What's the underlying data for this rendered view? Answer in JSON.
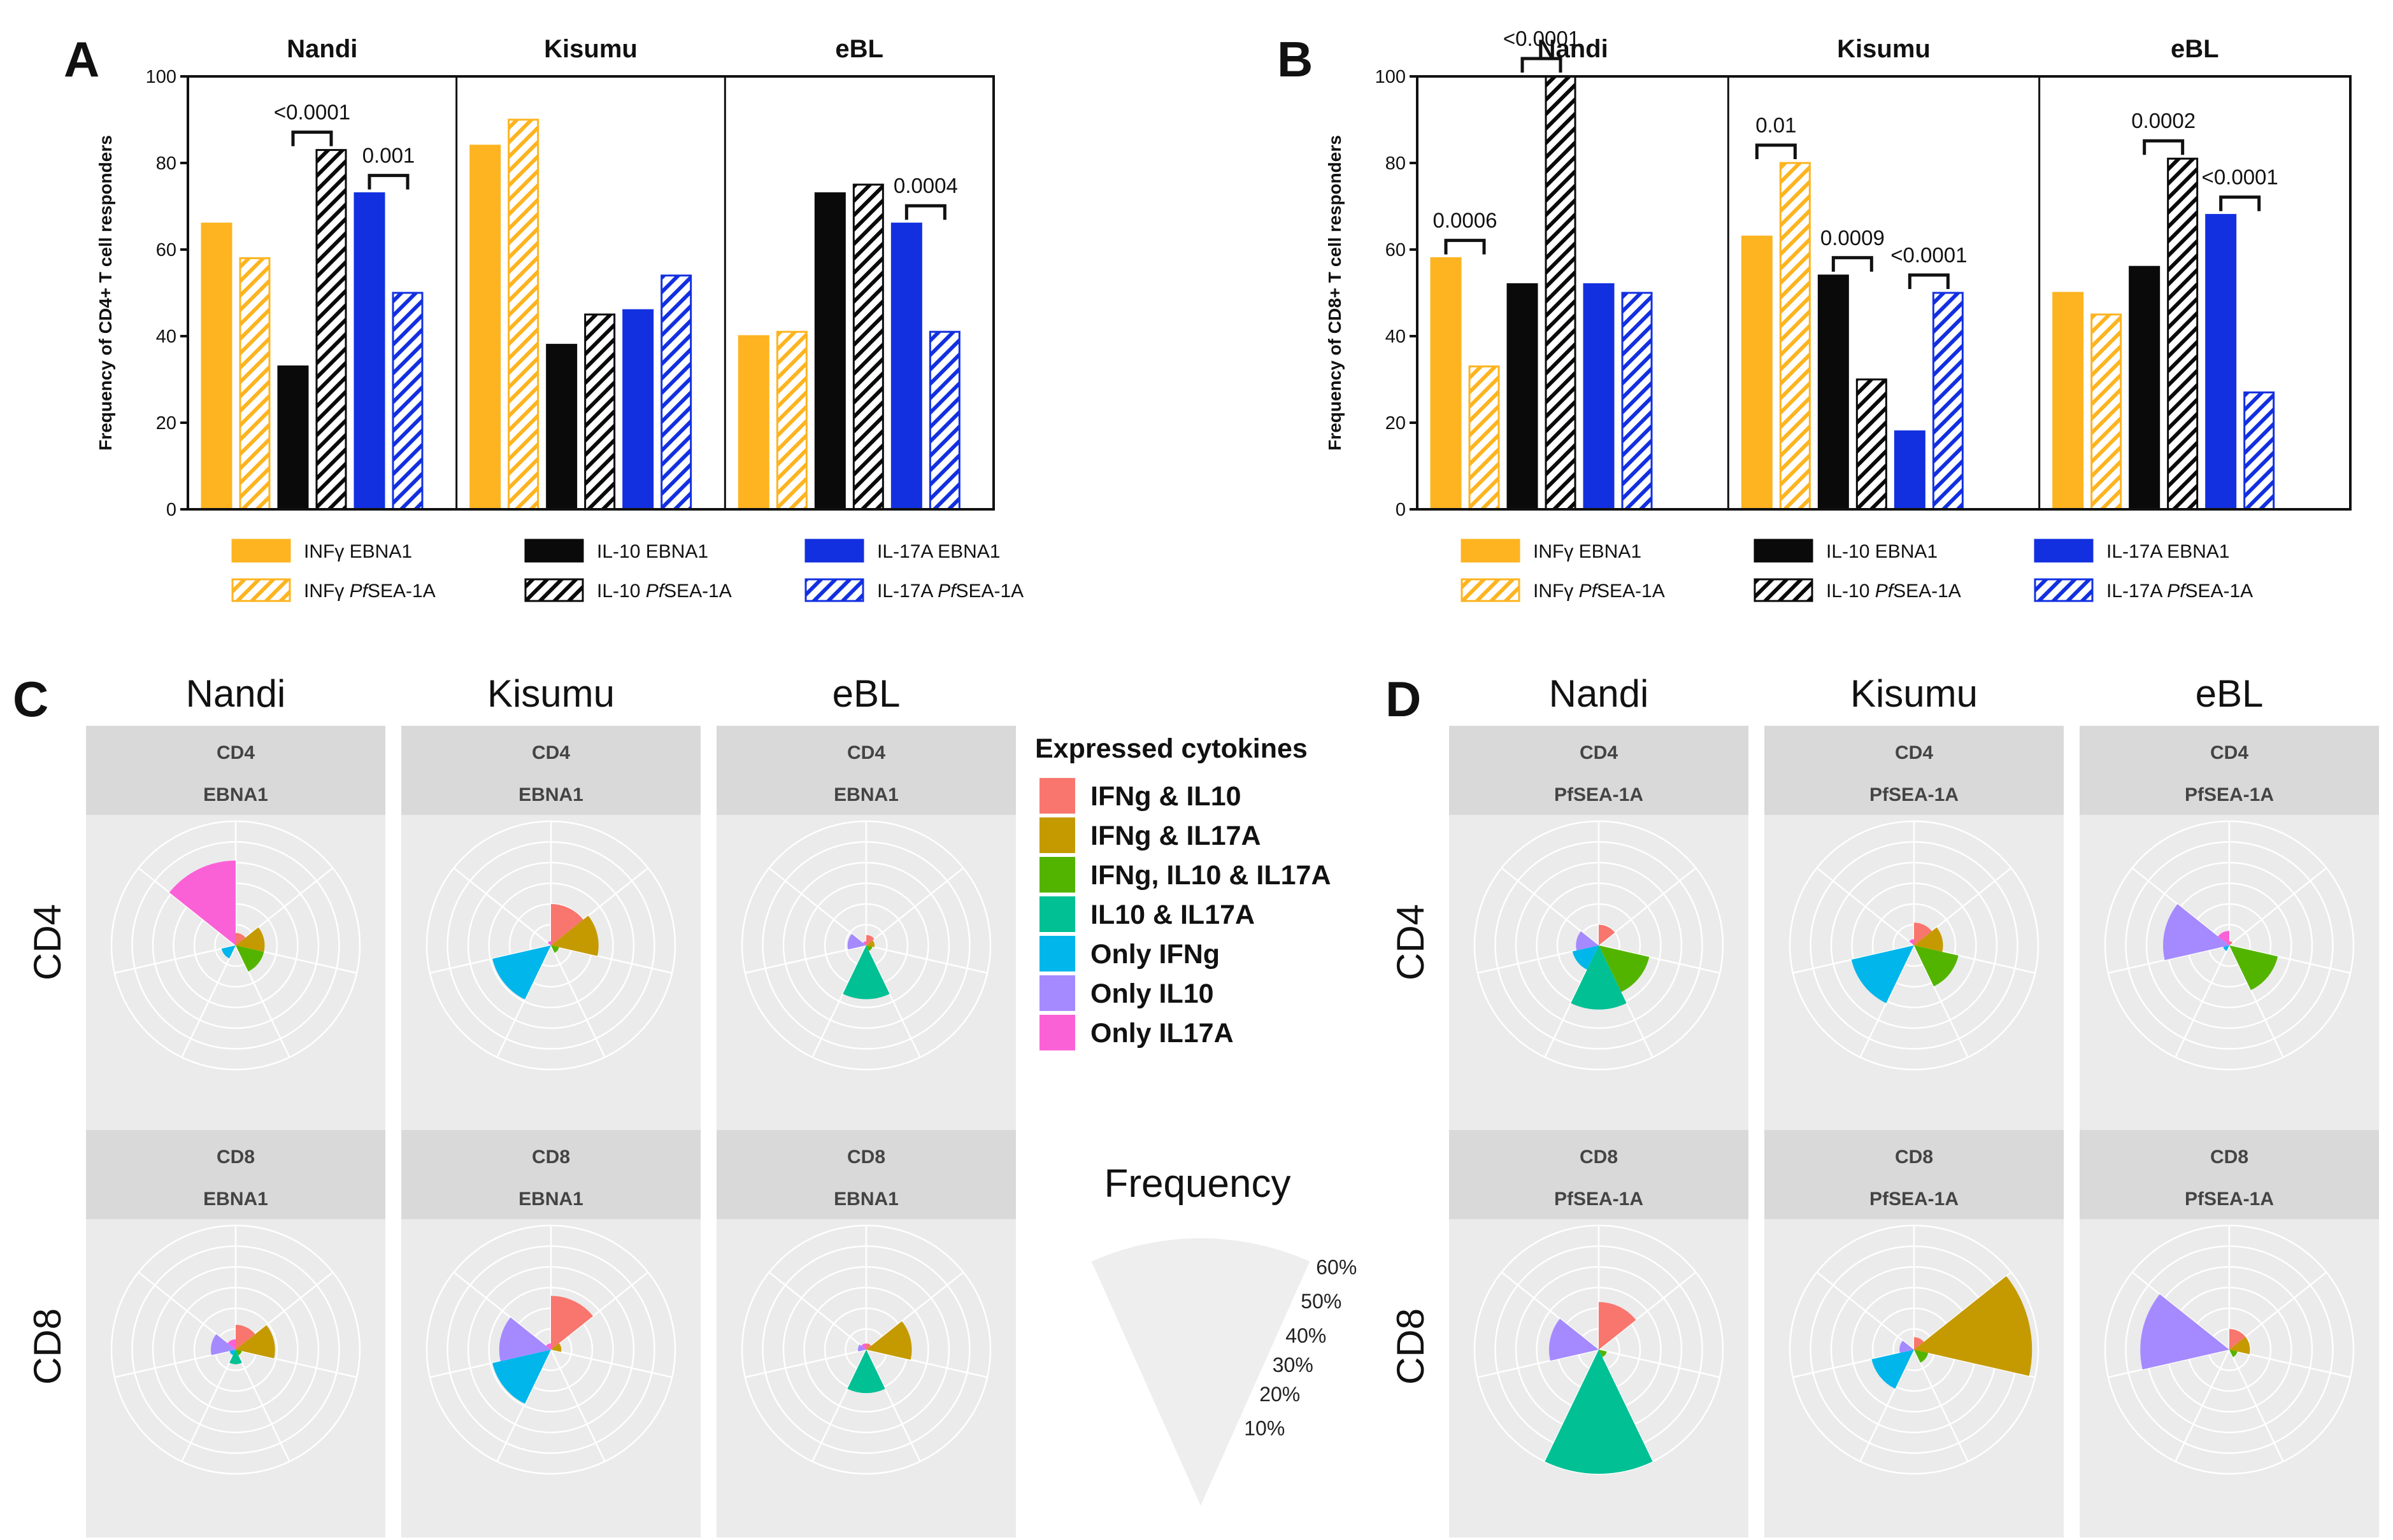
{
  "colors": {
    "ifng": "#FDB420",
    "il10": "#0A0A0A",
    "il17a": "#1230E0",
    "panel_bg": "#EBEBEB",
    "strip_bg": "#D9D9D9",
    "grid": "#FFFFFF",
    "IFNg & IL10": "#F8766D",
    "IFNg & IL17A": "#C49A00",
    "IFNg, IL10 & IL17A": "#53B400",
    "IL10 & IL17A": "#00C094",
    "Only IFNg": "#00B6EB",
    "Only IL10": "#A58AFF",
    "Only IL17A": "#FB61D7"
  },
  "panel_labels": [
    "A",
    "B",
    "C",
    "D"
  ],
  "chart_data": [
    {
      "id": "A",
      "type": "bar",
      "ylabel": "Frequency of CD4+ T cell responders",
      "ylim": [
        0,
        100
      ],
      "yticks": [
        0,
        20,
        40,
        60,
        80,
        100
      ],
      "groups": [
        "Nandi",
        "Kisumu",
        "eBL"
      ],
      "series": [
        {
          "name": "INFγ EBNA1",
          "values": [
            66,
            84,
            40
          ]
        },
        {
          "name": "INFγ PfSEA-1A",
          "values": [
            58,
            90,
            41
          ]
        },
        {
          "name": "IL-10 EBNA1",
          "values": [
            33,
            38,
            73
          ]
        },
        {
          "name": "IL-10 PfSEA-1A",
          "values": [
            83,
            45,
            75
          ]
        },
        {
          "name": "IL-17A EBNA1",
          "values": [
            73,
            46,
            66
          ]
        },
        {
          "name": "IL-17A PfSEA-1A",
          "values": [
            50,
            54,
            41
          ]
        }
      ],
      "annotations": [
        {
          "group": 0,
          "from": 2,
          "to": 3,
          "label": "<0.0001"
        },
        {
          "group": 0,
          "from": 4,
          "to": 5,
          "label": "0.001"
        },
        {
          "group": 2,
          "from": 4,
          "to": 5,
          "label": "0.0004"
        }
      ],
      "legend": [
        {
          "prefix": "INFγ EBNA1",
          "italic": "",
          "suffix": ""
        },
        {
          "prefix": "IL-10 EBNA1",
          "italic": "",
          "suffix": ""
        },
        {
          "prefix": "IL-17A EBNA1",
          "italic": "",
          "suffix": ""
        },
        {
          "prefix": "INFγ ",
          "italic": "Pf",
          "suffix": "SEA-1A"
        },
        {
          "prefix": "IL-10 ",
          "italic": "Pf",
          "suffix": "SEA-1A"
        },
        {
          "prefix": "IL-17A ",
          "italic": "Pf",
          "suffix": "SEA-1A"
        }
      ]
    },
    {
      "id": "B",
      "type": "bar",
      "ylabel": "Frequency of CD8+ T cell responders",
      "ylim": [
        0,
        100
      ],
      "yticks": [
        0,
        20,
        40,
        60,
        80,
        100
      ],
      "groups": [
        "Nandi",
        "Kisumu",
        "eBL"
      ],
      "series": [
        {
          "name": "INFγ EBNA1",
          "values": [
            58,
            63,
            50
          ]
        },
        {
          "name": "INFγ PfSEA-1A",
          "values": [
            33,
            80,
            45
          ]
        },
        {
          "name": "IL-10 EBNA1",
          "values": [
            52,
            54,
            56
          ]
        },
        {
          "name": "IL-10 PfSEA-1A",
          "values": [
            100,
            30,
            81
          ]
        },
        {
          "name": "IL-17A EBNA1",
          "values": [
            52,
            18,
            68
          ]
        },
        {
          "name": "IL-17A PfSEA-1A",
          "values": [
            50,
            50,
            27
          ]
        }
      ],
      "annotations": [
        {
          "group": 0,
          "from": 0,
          "to": 1,
          "label": "0.0006"
        },
        {
          "group": 0,
          "from": 2,
          "to": 3,
          "label": "<0.0001"
        },
        {
          "group": 1,
          "from": 0,
          "to": 1,
          "label": "0.01"
        },
        {
          "group": 1,
          "from": 2,
          "to": 3,
          "label": "0.0009"
        },
        {
          "group": 1,
          "from": 4,
          "to": 5,
          "label": "<0.0001"
        },
        {
          "group": 2,
          "from": 2,
          "to": 3,
          "label": "0.0002"
        },
        {
          "group": 2,
          "from": 4,
          "to": 5,
          "label": "<0.0001"
        }
      ],
      "legend": [
        {
          "prefix": "INFγ EBNA1",
          "italic": "",
          "suffix": ""
        },
        {
          "prefix": "IL-10 EBNA1",
          "italic": "",
          "suffix": ""
        },
        {
          "prefix": "IL-17A EBNA1",
          "italic": "",
          "suffix": ""
        },
        {
          "prefix": "INFγ ",
          "italic": "Pf",
          "suffix": "SEA-1A"
        },
        {
          "prefix": "IL-10 ",
          "italic": "Pf",
          "suffix": "SEA-1A"
        },
        {
          "prefix": "IL-17A ",
          "italic": "Pf",
          "suffix": "SEA-1A"
        }
      ]
    },
    {
      "id": "C",
      "type": "polar-bar",
      "cohorts": [
        "Nandi",
        "Kisumu",
        "eBL"
      ],
      "rows": [
        "CD4",
        "CD8"
      ],
      "antigen": "EBNA1",
      "categories": [
        "IFNg & IL10",
        "IFNg & IL17A",
        "IFNg, IL10 & IL17A",
        "IL10 & IL17A",
        "Only IFNg",
        "Only IL10",
        "Only IL17A"
      ],
      "panels": [
        {
          "row": "CD4",
          "cohort": "Nandi",
          "values": [
            6,
            14,
            14,
            0,
            7,
            0,
            41
          ]
        },
        {
          "row": "CD4",
          "cohort": "Kisumu",
          "values": [
            20,
            23,
            4,
            0,
            29,
            0,
            2
          ]
        },
        {
          "row": "CD4",
          "cohort": "eBL",
          "values": [
            5,
            4,
            3,
            26,
            0,
            9,
            2
          ]
        },
        {
          "row": "CD8",
          "cohort": "Nandi",
          "values": [
            12,
            19,
            3,
            7,
            3,
            12,
            5
          ]
        },
        {
          "row": "CD8",
          "cohort": "Kisumu",
          "values": [
            26,
            5,
            0,
            0,
            29,
            25,
            3
          ]
        },
        {
          "row": "CD8",
          "cohort": "eBL",
          "values": [
            3,
            22,
            0,
            21,
            0,
            4,
            3
          ]
        }
      ]
    },
    {
      "id": "D",
      "type": "polar-bar",
      "cohorts": [
        "Nandi",
        "Kisumu",
        "eBL"
      ],
      "rows": [
        "CD4",
        "CD8"
      ],
      "antigen": "PfSEA-1A",
      "categories": [
        "IFNg & IL10",
        "IFNg & IL17A",
        "IFNg, IL10 & IL17A",
        "IL10 & IL17A",
        "Only IFNg",
        "Only IL10",
        "Only IL17A"
      ],
      "panels": [
        {
          "row": "CD4",
          "cohort": "Nandi",
          "values": [
            10,
            0,
            25,
            31,
            13,
            11,
            0
          ]
        },
        {
          "row": "CD4",
          "cohort": "Kisumu",
          "values": [
            11,
            14,
            22,
            0,
            31,
            0,
            3
          ]
        },
        {
          "row": "CD4",
          "cohort": "eBL",
          "values": [
            2,
            0,
            24,
            0,
            3,
            32,
            7
          ]
        },
        {
          "row": "CD8",
          "cohort": "Nandi",
          "values": [
            23,
            0,
            4,
            60,
            0,
            24,
            0
          ]
        },
        {
          "row": "CD8",
          "cohort": "Kisumu",
          "values": [
            6,
            57,
            7,
            0,
            21,
            7,
            0
          ]
        },
        {
          "row": "CD8",
          "cohort": "eBL",
          "values": [
            10,
            10,
            4,
            0,
            0,
            43,
            0
          ]
        }
      ]
    }
  ],
  "facet": {
    "cohorts": [
      "Nandi",
      "Kisumu",
      "eBL"
    ],
    "rows": [
      "CD4",
      "CD8"
    ],
    "strips": {
      "C": "EBNA1",
      "D": "PfSEA-1A"
    }
  },
  "legend_polar": {
    "title": "Expressed cytokines",
    "items": [
      "IFNg & IL10",
      "IFNg & IL17A",
      "IFNg, IL10 & IL17A",
      "IL10 & IL17A",
      "Only IFNg",
      "Only IL10",
      "Only IL17A"
    ],
    "freq_title": "Frequency",
    "freq_labels": [
      "60%",
      "50%",
      "40%",
      "30%",
      "20%",
      "10%"
    ]
  }
}
